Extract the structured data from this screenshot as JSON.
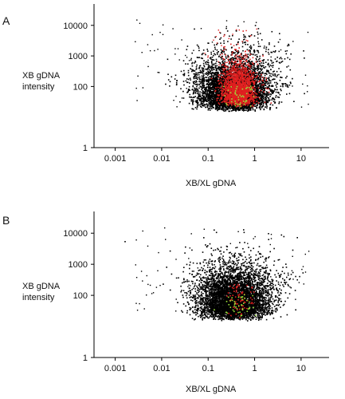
{
  "chart_data": [
    {
      "type": "scatter",
      "panel_label": "A",
      "xlabel": "XB/XL gDNA",
      "ylabel_lines": [
        "XB gDNA",
        "intensity"
      ],
      "x_scale": "log",
      "y_scale": "log",
      "xlim": [
        0.00035,
        40
      ],
      "ylim": [
        1,
        50000
      ],
      "x_ticks": [
        0.001,
        0.01,
        0.1,
        1,
        10
      ],
      "x_tick_labels": [
        "0.001",
        "0.01",
        "0.1",
        "1",
        "10"
      ],
      "y_ticks": [
        1,
        100,
        1000,
        10000
      ],
      "y_tick_labels": [
        "1",
        "100",
        "1000",
        "10000"
      ],
      "grid": false,
      "series": [
        {
          "color": "#000000",
          "description": "all probes",
          "density": "dense"
        },
        {
          "color": "#e02020",
          "description": "highlighted probes",
          "density": "dense"
        },
        {
          "color": "#9adf3a",
          "description": "sparse subset",
          "density": "sparse"
        }
      ]
    },
    {
      "type": "scatter",
      "panel_label": "B",
      "xlabel": "XB/XL gDNA",
      "ylabel_lines": [
        "XB gDNA",
        "intensity"
      ],
      "x_scale": "log",
      "y_scale": "log",
      "xlim": [
        0.00035,
        40
      ],
      "ylim": [
        1,
        50000
      ],
      "x_ticks": [
        0.001,
        0.01,
        0.1,
        1,
        10
      ],
      "x_tick_labels": [
        "0.001",
        "0.01",
        "0.1",
        "1",
        "10"
      ],
      "y_ticks": [
        1,
        100,
        1000,
        10000
      ],
      "y_tick_labels": [
        "1",
        "100",
        "1000",
        "10000"
      ],
      "grid": false,
      "series": [
        {
          "color": "#000000",
          "description": "all probes",
          "density": "dense"
        },
        {
          "color": "#e02020",
          "description": "highlighted probes",
          "density": "sparse"
        },
        {
          "color": "#9adf3a",
          "description": "sparse subset",
          "density": "sparse"
        }
      ]
    }
  ]
}
